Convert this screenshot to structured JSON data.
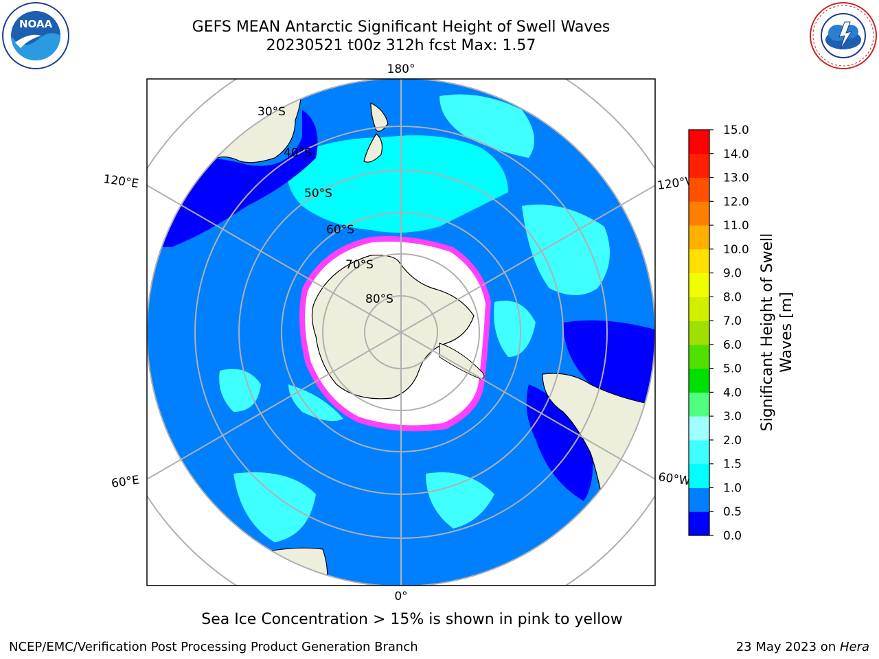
{
  "title": {
    "line1": "GEFS MEAN Antarctic Significant Height of Swell Waves",
    "line2": "20230521 t00z 312h fcst   Max: 1.57"
  },
  "map": {
    "projection": "south-polar-stereographic",
    "latitude_labels": [
      "30°S",
      "40°S",
      "50°S",
      "60°S",
      "70°S",
      "80°S"
    ],
    "longitude_labels": [
      "180°",
      "120°E",
      "120°W",
      "60°E",
      "60°W",
      "0°"
    ],
    "colors": {
      "ocean_base": "#0080ff",
      "swell_1_5": "#00ffff",
      "swell_low": "#0000ff",
      "land": "#eeeedc",
      "ice": "#ffffff",
      "ice_edge": "#ff40ff",
      "grid": "#b0b0b0"
    }
  },
  "colorbar": {
    "label_line1": "Significant Height of Swell",
    "label_line2": "Waves [m]",
    "ticks": [
      "0.0",
      "0.5",
      "1.0",
      "1.5",
      "2.0",
      "3.0",
      "4.0",
      "5.0",
      "6.0",
      "7.0",
      "8.0",
      "9.0",
      "10.0",
      "11.0",
      "12.0",
      "13.0",
      "14.0",
      "15.0"
    ],
    "colors": [
      "#0000ff",
      "#0080ff",
      "#00ffff",
      "#40ffff",
      "#a0ffff",
      "#50ff80",
      "#00e000",
      "#50e000",
      "#a0e000",
      "#d0f000",
      "#f0ff00",
      "#ffe000",
      "#ffb000",
      "#ff8000",
      "#ff5000",
      "#ff2000",
      "#ff0000"
    ]
  },
  "caption": "Sea Ice Concentration > 15% is shown in pink to yellow",
  "footer": {
    "left": "NCEP/EMC/Verification Post Processing Product Generation Branch",
    "date": "23 May 2023 on ",
    "machine": "Hera"
  },
  "logos": {
    "noaa": "NOAA",
    "nws": "NATIONAL WEATHER SERVICE"
  }
}
